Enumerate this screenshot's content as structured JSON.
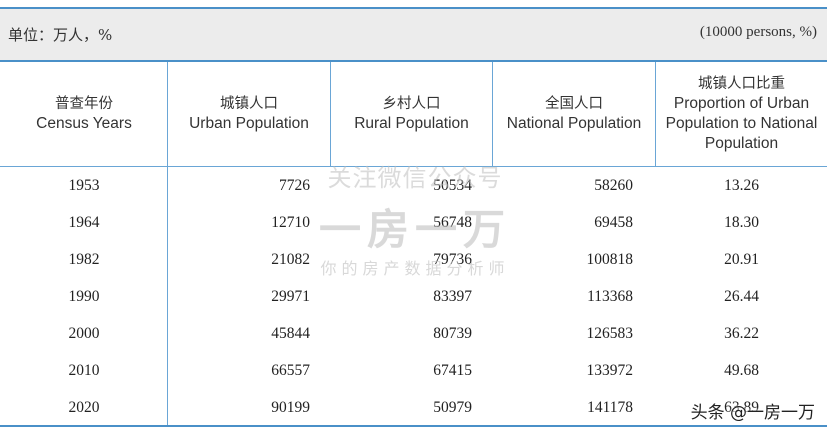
{
  "unit": {
    "left": "单位：万人，%",
    "right": "(10000 persons, %)"
  },
  "headers": [
    {
      "zh": "普查年份",
      "en_lines": [
        "Census Years"
      ]
    },
    {
      "zh": "城镇人口",
      "en_lines": [
        "Urban Population"
      ]
    },
    {
      "zh": "乡村人口",
      "en_lines": [
        "Rural Population"
      ]
    },
    {
      "zh": "全国人口",
      "en_lines": [
        "National Population"
      ]
    },
    {
      "zh": "城镇人口比重",
      "en_lines": [
        "Proportion of Urban",
        "Population to National",
        "Population"
      ]
    }
  ],
  "rows": [
    [
      "1953",
      "7726",
      "50534",
      "58260",
      "13.26"
    ],
    [
      "1964",
      "12710",
      "56748",
      "69458",
      "18.30"
    ],
    [
      "1982",
      "21082",
      "79736",
      "100818",
      "20.91"
    ],
    [
      "1990",
      "29971",
      "83397",
      "113368",
      "26.44"
    ],
    [
      "2000",
      "45844",
      "80739",
      "126583",
      "36.22"
    ],
    [
      "2010",
      "66557",
      "67415",
      "133972",
      "49.68"
    ],
    [
      "2020",
      "90199",
      "50979",
      "141178",
      "63.89"
    ]
  ],
  "watermark": {
    "line1": "关注微信公众号",
    "line2": "一房一万",
    "line3": "你的房产数据分析师",
    "corner": "头条 @一房一万"
  }
}
